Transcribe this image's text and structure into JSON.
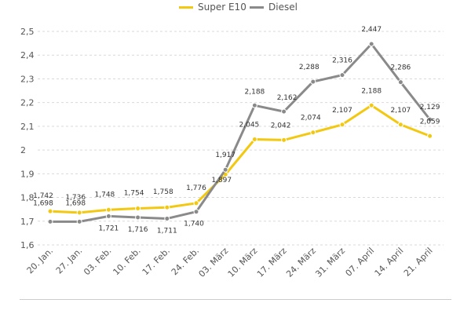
{
  "chart_data": {
    "type": "line",
    "title": "",
    "xlabel": "",
    "ylabel": "",
    "categories": [
      "20. Jan.",
      "27. Jan.",
      "03. Feb.",
      "10. Feb.",
      "17. Feb.",
      "24. Feb.",
      "03. März",
      "10. März",
      "17. März",
      "24. März",
      "31. März",
      "07. April",
      "14. April",
      "21. April"
    ],
    "ylim": [
      1.6,
      2.5
    ],
    "yticks": [
      1.6,
      1.7,
      1.8,
      1.9,
      2.0,
      2.1,
      2.2,
      2.3,
      2.4,
      2.5
    ],
    "ytick_labels": [
      "1,6",
      "1,7",
      "1,8",
      "1,9",
      "2",
      "2,1",
      "2,2",
      "2,3",
      "2,4",
      "2,5"
    ],
    "grid": true,
    "legend_position": "top-center",
    "series": [
      {
        "name": "Super E10",
        "color": "#f2c811",
        "values": [
          1.742,
          1.736,
          1.748,
          1.754,
          1.758,
          1.776,
          1.897,
          2.045,
          2.042,
          2.074,
          2.107,
          2.188,
          2.107,
          2.059
        ],
        "labels": [
          "1,742",
          "1,736",
          "1,748",
          "1,754",
          "1,758",
          "1,776",
          "1,897",
          "2,045",
          "2,042",
          "2,074",
          "2,107",
          "2,188",
          "2,107",
          "2,059"
        ]
      },
      {
        "name": "Diesel",
        "color": "#8a8a8a",
        "values": [
          1.698,
          1.698,
          1.721,
          1.716,
          1.711,
          1.74,
          1.917,
          2.188,
          2.162,
          2.288,
          2.316,
          2.447,
          2.286,
          2.129
        ],
        "labels": [
          "1,698",
          "1,698",
          "1,721",
          "1,716",
          "1,711",
          "1,740",
          "1,917",
          "2,188",
          "2,162",
          "2,288",
          "2,316",
          "2,447",
          "2,286",
          "2,129"
        ]
      }
    ]
  }
}
